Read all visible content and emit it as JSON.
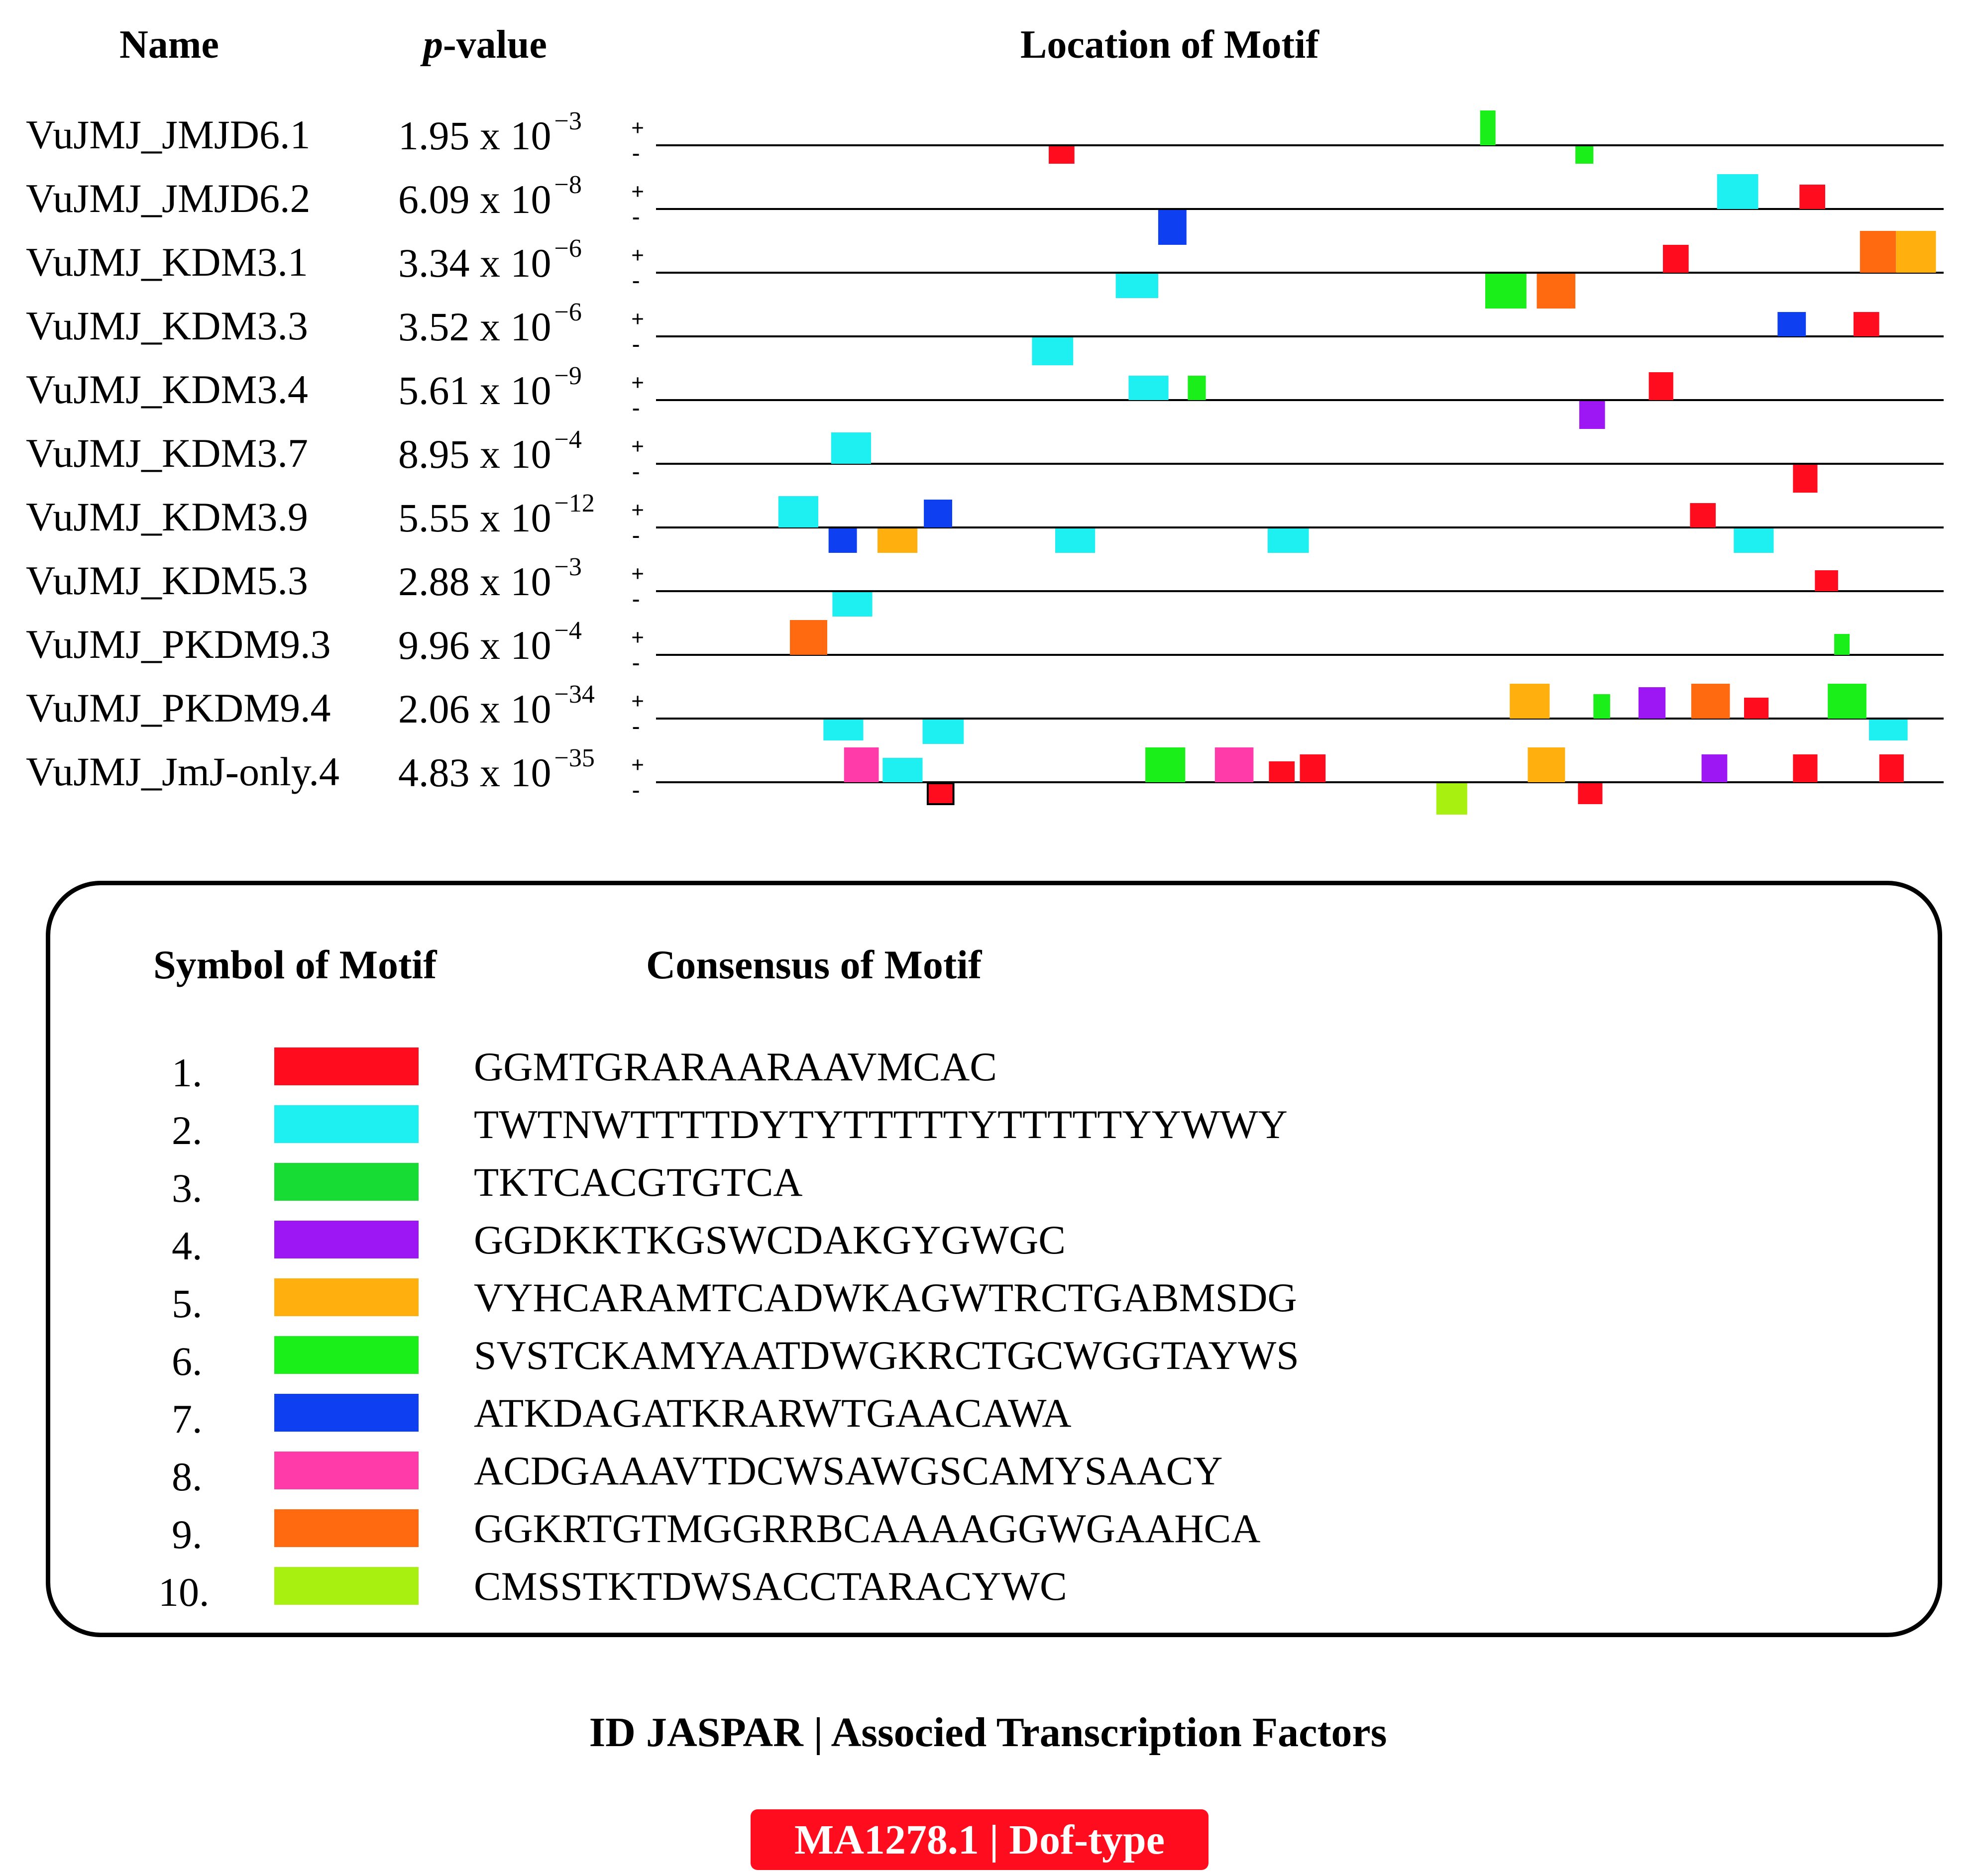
{
  "headers": {
    "name": "Name",
    "pvalue_italic": "p",
    "pvalue_rest": "-value",
    "location": "Location of Motif"
  },
  "strand_symbols": {
    "plus": "+",
    "minus": "-"
  },
  "colors": {
    "1": "#ff0d1f",
    "2": "#1ef0f2",
    "3": "#17dc34",
    "4": "#9d17f5",
    "5": "#ffb00f",
    "6": "#1aef1a",
    "7": "#0e3ff0",
    "8": "#ff3aa9",
    "9": "#ff6a10",
    "10": "#a8f00f",
    "dark_red": "#e0001a",
    "dark_green": "#00c840",
    "yellow_green": "#c8f21a",
    "badge": "#ff0d1f"
  },
  "chart_data": {
    "type": "motif-location-map",
    "title": "Location of Motif",
    "x_range": [
      0,
      1000
    ],
    "sequences": [
      {
        "name": "VuJMJ_JMJD6.1",
        "pvalue_base": "1.95 x 10",
        "pvalue_exp": "−3",
        "motifs": [
          {
            "motif": "1",
            "start": 305,
            "end": 325,
            "strand": "-",
            "h": 0.5
          },
          {
            "motif": "6",
            "start": 640,
            "end": 652,
            "strand": "+",
            "h": 1.0
          },
          {
            "motif": "6",
            "start": 714,
            "end": 728,
            "strand": "-",
            "h": 0.5
          }
        ]
      },
      {
        "name": "VuJMJ_JMJD6.2",
        "pvalue_base": "6.09 x 10",
        "pvalue_exp": "−8",
        "motifs": [
          {
            "motif": "7",
            "start": 390,
            "end": 412,
            "strand": "-",
            "h": 1.0
          },
          {
            "motif": "2",
            "start": 824,
            "end": 856,
            "strand": "+",
            "h": 1.0
          },
          {
            "motif": "1",
            "start": 888,
            "end": 908,
            "strand": "+",
            "h": 0.7
          }
        ]
      },
      {
        "name": "VuJMJ_KDM3.1",
        "pvalue_base": "3.34 x 10",
        "pvalue_exp": "−6",
        "motifs": [
          {
            "motif": "2",
            "start": 357,
            "end": 390,
            "strand": "-",
            "h": 0.7
          },
          {
            "motif": "6",
            "start": 644,
            "end": 676,
            "strand": "-",
            "h": 1.0
          },
          {
            "motif": "9",
            "start": 684,
            "end": 714,
            "strand": "-",
            "h": 1.0
          },
          {
            "motif": "1",
            "start": 782,
            "end": 802,
            "strand": "+",
            "h": 0.8
          },
          {
            "motif": "9",
            "start": 935,
            "end": 963,
            "strand": "+",
            "h": 1.2
          },
          {
            "motif": "5",
            "start": 963,
            "end": 994,
            "strand": "+",
            "h": 1.2
          }
        ]
      },
      {
        "name": "VuJMJ_KDM3.3",
        "pvalue_base": "3.52 x 10",
        "pvalue_exp": "−6",
        "motifs": [
          {
            "motif": "2",
            "start": 292,
            "end": 324,
            "strand": "-",
            "h": 0.8
          },
          {
            "motif": "7",
            "start": 871,
            "end": 893,
            "strand": "+",
            "h": 0.7
          },
          {
            "motif": "1",
            "start": 930,
            "end": 950,
            "strand": "+",
            "h": 0.7
          }
        ]
      },
      {
        "name": "VuJMJ_KDM3.4",
        "pvalue_base": "5.61 x 10",
        "pvalue_exp": "−9",
        "motifs": [
          {
            "motif": "2",
            "start": 367,
            "end": 398,
            "strand": "+",
            "h": 0.7
          },
          {
            "motif": "6",
            "start": 413,
            "end": 427,
            "strand": "+",
            "h": 0.7
          },
          {
            "motif": "4",
            "start": 717,
            "end": 737,
            "strand": "-",
            "h": 0.8
          },
          {
            "motif": "1",
            "start": 771,
            "end": 790,
            "strand": "+",
            "h": 0.8
          }
        ]
      },
      {
        "name": "VuJMJ_KDM3.7",
        "pvalue_base": "8.95 x 10",
        "pvalue_exp": "−4",
        "motifs": [
          {
            "motif": "2",
            "start": 136,
            "end": 167,
            "strand": "+",
            "h": 0.9
          },
          {
            "motif": "1",
            "start": 883,
            "end": 902,
            "strand": "-",
            "h": 0.8
          }
        ]
      },
      {
        "name": "VuJMJ_KDM3.9",
        "pvalue_base": "5.55 x 10",
        "pvalue_exp": "−12",
        "motifs": [
          {
            "motif": "2",
            "start": 95,
            "end": 126,
            "strand": "+",
            "h": 0.9
          },
          {
            "motif": "7",
            "start": 134,
            "end": 156,
            "strand": "-",
            "h": 0.7
          },
          {
            "motif": "5",
            "start": 172,
            "end": 203,
            "strand": "-",
            "h": 0.7
          },
          {
            "motif": "7",
            "start": 208,
            "end": 230,
            "strand": "+",
            "h": 0.8
          },
          {
            "motif": "2",
            "start": 310,
            "end": 341,
            "strand": "-",
            "h": 0.7
          },
          {
            "motif": "2",
            "start": 475,
            "end": 507,
            "strand": "-",
            "h": 0.7
          },
          {
            "motif": "1",
            "start": 803,
            "end": 823,
            "strand": "+",
            "h": 0.7
          },
          {
            "motif": "2",
            "start": 837,
            "end": 868,
            "strand": "-",
            "h": 0.7
          }
        ]
      },
      {
        "name": "VuJMJ_KDM5.3",
        "pvalue_base": "2.88 x 10",
        "pvalue_exp": "−3",
        "motifs": [
          {
            "motif": "2",
            "start": 137,
            "end": 168,
            "strand": "-",
            "h": 0.7
          },
          {
            "motif": "1",
            "start": 900,
            "end": 918,
            "strand": "+",
            "h": 0.6
          }
        ]
      },
      {
        "name": "VuJMJ_PKDM9.3",
        "pvalue_base": "9.96 x 10",
        "pvalue_exp": "−4",
        "motifs": [
          {
            "motif": "9",
            "start": 104,
            "end": 133,
            "strand": "+",
            "h": 1.0
          },
          {
            "motif": "6",
            "start": 915,
            "end": 927,
            "strand": "+",
            "h": 0.6
          }
        ]
      },
      {
        "name": "VuJMJ_PKDM9.4",
        "pvalue_base": "2.06 x 10",
        "pvalue_exp": "−34",
        "motifs": [
          {
            "motif": "2",
            "start": 130,
            "end": 161,
            "strand": "-",
            "h": 0.6
          },
          {
            "motif": "2",
            "start": 207,
            "end": 239,
            "strand": "-",
            "h": 0.7
          },
          {
            "motif": "5",
            "start": 663,
            "end": 694,
            "strand": "+",
            "h": 1.0
          },
          {
            "motif": "6",
            "start": 728,
            "end": 741,
            "strand": "+",
            "h": 0.7
          },
          {
            "motif": "4",
            "start": 763,
            "end": 784,
            "strand": "+",
            "h": 0.9
          },
          {
            "motif": "9",
            "start": 804,
            "end": 834,
            "strand": "+",
            "h": 1.0
          },
          {
            "motif": "1",
            "start": 845,
            "end": 864,
            "strand": "+",
            "h": 0.6
          },
          {
            "motif": "6",
            "start": 910,
            "end": 940,
            "strand": "+",
            "h": 1.0
          },
          {
            "motif": "2",
            "start": 942,
            "end": 972,
            "strand": "-",
            "h": 0.6
          }
        ]
      },
      {
        "name": "VuJMJ_JmJ-only.4",
        "pvalue_base": "4.83 x 10",
        "pvalue_exp": "−35",
        "motifs": [
          {
            "motif": "8",
            "start": 146,
            "end": 173,
            "strand": "+",
            "h": 1.0
          },
          {
            "motif": "2",
            "start": 176,
            "end": 207,
            "strand": "+",
            "h": 0.7
          },
          {
            "motif": "1",
            "start": 211,
            "end": 231,
            "strand": "-",
            "h": 0.6,
            "outline": true
          },
          {
            "motif": "6",
            "start": 380,
            "end": 411,
            "strand": "+",
            "h": 1.0
          },
          {
            "motif": "8",
            "start": 434,
            "end": 464,
            "strand": "+",
            "h": 1.0
          },
          {
            "motif": "1",
            "start": 476,
            "end": 496,
            "strand": "+",
            "h": 0.6
          },
          {
            "motif": "1",
            "start": 500,
            "end": 520,
            "strand": "+",
            "h": 0.8
          },
          {
            "motif": "10",
            "start": 606,
            "end": 630,
            "strand": "-",
            "h": 0.9
          },
          {
            "motif": "5",
            "start": 677,
            "end": 706,
            "strand": "+",
            "h": 1.0
          },
          {
            "motif": "1",
            "start": 716,
            "end": 735,
            "strand": "-",
            "h": 0.6
          },
          {
            "motif": "4",
            "start": 812,
            "end": 832,
            "strand": "+",
            "h": 0.8
          },
          {
            "motif": "1",
            "start": 883,
            "end": 902,
            "strand": "+",
            "h": 0.8
          },
          {
            "motif": "1",
            "start": 950,
            "end": 969,
            "strand": "+",
            "h": 0.8
          }
        ]
      }
    ]
  },
  "legend": {
    "header_symbol": "Symbol of Motif",
    "header_consensus": "Consensus of Motif",
    "items": [
      {
        "num": "1.",
        "color_key": "1",
        "consensus": "GGMTGRARAARAAVMCAC"
      },
      {
        "num": "2.",
        "color_key": "2",
        "consensus": "TWTNWTTTTDYTYTTTTTYTTTTTYYWWY"
      },
      {
        "num": "3.",
        "color_key": "3",
        "consensus": "TKTCACGTGTCA"
      },
      {
        "num": "4.",
        "color_key": "4",
        "consensus": "GGDKKTKGSWCDAKGYGWGC"
      },
      {
        "num": "5.",
        "color_key": "5",
        "consensus": "VYHCARAMTCADWKAGWTRCTGABMSDG"
      },
      {
        "num": "6.",
        "color_key": "6",
        "consensus": "SVSTCKAMYAATDWGKRCTGCWGGTAYWS"
      },
      {
        "num": "7.",
        "color_key": "7",
        "consensus": "ATKDAGATKRARWTGAACAWA"
      },
      {
        "num": "8.",
        "color_key": "8",
        "consensus": "ACDGAAAVTDCWSAWGSCAMYSAACY"
      },
      {
        "num": "9.",
        "color_key": "9",
        "consensus": "GGKRTGTMGGRRBCAAAAGGWGAAHCA"
      },
      {
        "num": "10.",
        "color_key": "10",
        "consensus": "CMSSTKTDWSACCTARACYWC"
      }
    ]
  },
  "footer": {
    "title": "ID JASPAR | Associed Transcription Factors",
    "badge": "MA1278.1 | Dof-type"
  }
}
